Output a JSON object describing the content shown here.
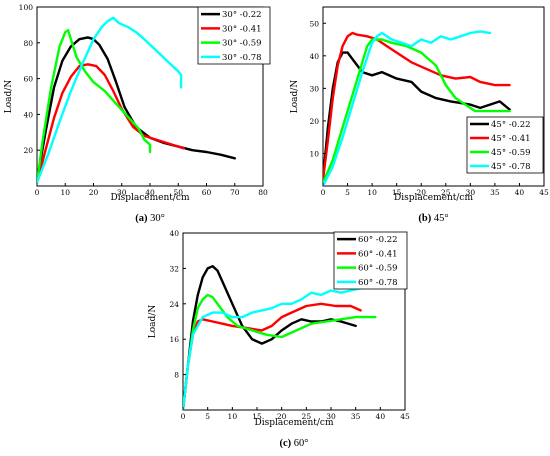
{
  "chart_data": [
    {
      "type": "line",
      "caption_letter": "(a)",
      "caption_text": "30°",
      "xlabel": "Displacement/cm",
      "ylabel": "Load/N",
      "xlim": [
        0,
        80
      ],
      "ylim": [
        0,
        100
      ],
      "xticks": [
        0,
        10,
        20,
        30,
        40,
        50,
        60,
        70,
        80
      ],
      "yticks": [
        20,
        40,
        60,
        80,
        100
      ],
      "legend_position": "top-right",
      "series": [
        {
          "name": "30° -0.22",
          "color": "#000000",
          "x": [
            0,
            3,
            6,
            9,
            12,
            15,
            18,
            20,
            22,
            25,
            28,
            31,
            35,
            40,
            45,
            50,
            55,
            60,
            65,
            70
          ],
          "y": [
            3,
            30,
            55,
            70,
            78,
            82,
            83,
            82,
            79,
            71,
            58,
            44,
            33,
            27,
            24,
            22,
            20,
            19,
            17.5,
            15.5
          ]
        },
        {
          "name": "30° -0.41",
          "color": "#ff0000",
          "x": [
            0,
            3,
            6,
            9,
            12,
            15,
            18,
            21,
            24,
            27,
            30,
            34,
            38,
            42,
            46,
            50,
            52
          ],
          "y": [
            2,
            20,
            38,
            52,
            61,
            67,
            68,
            67,
            62,
            53,
            43,
            33,
            28,
            26,
            24,
            22,
            21
          ]
        },
        {
          "name": "30° -0.59",
          "color": "#00ff00",
          "x": [
            0,
            2,
            5,
            8,
            10,
            11,
            12,
            14,
            17,
            20,
            24,
            28,
            32,
            36,
            38,
            40,
            40
          ],
          "y": [
            2,
            25,
            55,
            78,
            86,
            87,
            82,
            72,
            64,
            58,
            53,
            46,
            39,
            32,
            26,
            23,
            19
          ]
        },
        {
          "name": "30° -0.78",
          "color": "#00ffff",
          "x": [
            0,
            4,
            8,
            12,
            16,
            20,
            23,
            25,
            27,
            29,
            32,
            35,
            38,
            42,
            46,
            50,
            51,
            51
          ],
          "y": [
            2,
            18,
            36,
            53,
            68,
            82,
            89,
            92,
            94,
            91,
            89,
            86,
            82,
            76,
            70,
            64,
            62,
            55
          ]
        }
      ]
    },
    {
      "type": "line",
      "caption_letter": "(b)",
      "caption_text": "45°",
      "xlabel": "Displacement/cm",
      "ylabel": "Load/N",
      "xlim": [
        0,
        45
      ],
      "ylim": [
        0,
        55
      ],
      "xticks": [
        0,
        5,
        10,
        15,
        20,
        25,
        30,
        35,
        40,
        45
      ],
      "yticks": [
        10,
        20,
        30,
        40,
        50
      ],
      "legend_position": "bottom-right",
      "series": [
        {
          "name": "45° -0.22",
          "color": "#000000",
          "x": [
            0,
            1,
            2,
            3,
            4,
            5,
            6,
            8,
            10,
            12,
            15,
            18,
            20,
            23,
            26,
            30,
            32,
            34,
            36,
            38
          ],
          "y": [
            2,
            18,
            30,
            38,
            41,
            41,
            39,
            35,
            34,
            35,
            33,
            32,
            29,
            27,
            26,
            25,
            24,
            25,
            26,
            23.5
          ]
        },
        {
          "name": "45° -0.41",
          "color": "#ff0000",
          "x": [
            0,
            1,
            2,
            3,
            4,
            5,
            6,
            7,
            9,
            11,
            13,
            15,
            18,
            21,
            24,
            27,
            30,
            32,
            35,
            38
          ],
          "y": [
            2,
            14,
            27,
            37,
            43,
            46,
            47,
            46.5,
            46,
            45,
            43,
            41,
            38,
            36,
            34,
            33,
            33.5,
            32,
            31,
            31
          ]
        },
        {
          "name": "45° -0.59",
          "color": "#00ff00",
          "x": [
            0,
            2,
            4,
            6,
            8,
            9,
            10,
            12,
            14,
            17,
            20,
            23,
            25,
            27,
            29,
            31,
            33,
            35,
            37,
            38
          ],
          "y": [
            1,
            8,
            18,
            28,
            38,
            43,
            45,
            45,
            44,
            43,
            41,
            37,
            31,
            27,
            25,
            23,
            23,
            23,
            23,
            23
          ]
        },
        {
          "name": "45° -0.78",
          "color": "#00ffff",
          "x": [
            0,
            2,
            4,
            6,
            8,
            10,
            11,
            12,
            14,
            16,
            18,
            20,
            22,
            24,
            26,
            28,
            30,
            32,
            34
          ],
          "y": [
            0,
            6,
            15,
            25,
            35,
            44,
            46,
            47,
            45,
            44,
            43,
            45,
            44,
            46,
            45,
            46,
            47,
            47.5,
            47
          ]
        }
      ]
    },
    {
      "type": "line",
      "caption_letter": "(c)",
      "caption_text": "60°",
      "xlabel": "Displacement/cm",
      "ylabel": "Load/N",
      "xlim": [
        0,
        45
      ],
      "ylim": [
        0,
        40
      ],
      "xticks": [
        0,
        5,
        10,
        15,
        20,
        25,
        30,
        35,
        40,
        45
      ],
      "yticks": [
        8,
        16,
        24,
        32,
        40
      ],
      "legend_position": "top-right",
      "series": [
        {
          "name": "60° -0.22",
          "color": "#000000",
          "x": [
            0,
            1,
            2,
            3,
            4,
            5,
            6,
            7,
            8,
            10,
            12,
            14,
            16,
            18,
            20,
            22,
            24,
            26,
            28,
            30,
            32,
            35
          ],
          "y": [
            0,
            10,
            20,
            26,
            30,
            32,
            32.5,
            31.5,
            29,
            24,
            19,
            16,
            15,
            16,
            18,
            19.5,
            20.5,
            20,
            20,
            20.5,
            20,
            19
          ]
        },
        {
          "name": "60° -0.41",
          "color": "#ff0000",
          "x": [
            0,
            1,
            2,
            3,
            4,
            6,
            8,
            10,
            13,
            16,
            18,
            20,
            22,
            25,
            28,
            31,
            34,
            36
          ],
          "y": [
            0,
            10,
            17,
            20,
            20.5,
            20,
            19.5,
            19,
            18.5,
            18,
            19,
            21,
            22,
            23.5,
            24,
            23.5,
            23.5,
            22.5
          ]
        },
        {
          "name": "60° -0.59",
          "color": "#00ff00",
          "x": [
            0,
            1,
            2,
            3,
            4,
            5,
            6,
            7,
            9,
            11,
            14,
            17,
            20,
            23,
            26,
            29,
            32,
            35,
            38,
            39
          ],
          "y": [
            0,
            10,
            18,
            23,
            25,
            26,
            25.5,
            24,
            21,
            19,
            18,
            17,
            16.5,
            18,
            19.5,
            20,
            20.5,
            21,
            21,
            21
          ]
        },
        {
          "name": "60° -0.78",
          "color": "#00ffff",
          "x": [
            0,
            1,
            2,
            4,
            6,
            8,
            10,
            12,
            14,
            16,
            18,
            20,
            22,
            24,
            26,
            28,
            30,
            32,
            34,
            36,
            38,
            39
          ],
          "y": [
            0,
            10,
            17,
            21,
            22,
            22,
            21,
            21,
            22,
            22.5,
            23,
            24,
            24,
            25,
            26.5,
            26,
            27,
            26.5,
            27,
            27.5,
            28,
            29
          ]
        }
      ]
    }
  ]
}
